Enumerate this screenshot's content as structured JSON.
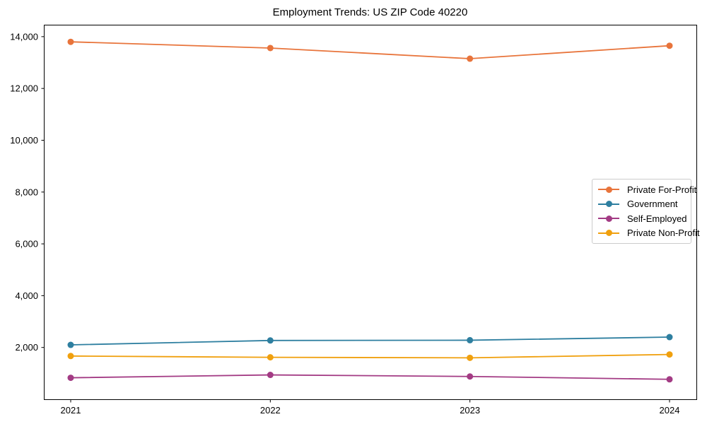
{
  "chart_data": {
    "type": "line",
    "title": "Employment Trends: US ZIP Code 40220",
    "xlabel": "",
    "ylabel": "",
    "x": [
      "2021",
      "2022",
      "2023",
      "2024"
    ],
    "series": [
      {
        "name": "Private For-Profit",
        "color": "#E8743B",
        "values": [
          13800,
          13560,
          13150,
          13650
        ]
      },
      {
        "name": "Government",
        "color": "#2E7FA0",
        "values": [
          2100,
          2270,
          2280,
          2400
        ]
      },
      {
        "name": "Self-Employed",
        "color": "#A33B84",
        "values": [
          830,
          940,
          880,
          770
        ]
      },
      {
        "name": "Private Non-Profit",
        "color": "#F0A00E",
        "values": [
          1670,
          1620,
          1600,
          1730
        ]
      }
    ],
    "ylim": [
      0,
      14460
    ],
    "yticks": [
      2000,
      4000,
      6000,
      8000,
      10000,
      12000,
      14000
    ],
    "ytick_labels": [
      "2,000",
      "4,000",
      "6,000",
      "8,000",
      "10,000",
      "12,000",
      "14,000"
    ],
    "grid": false,
    "legend_position": "center right",
    "axis_color": "#000000",
    "background": "#ffffff",
    "marker": "circle"
  }
}
